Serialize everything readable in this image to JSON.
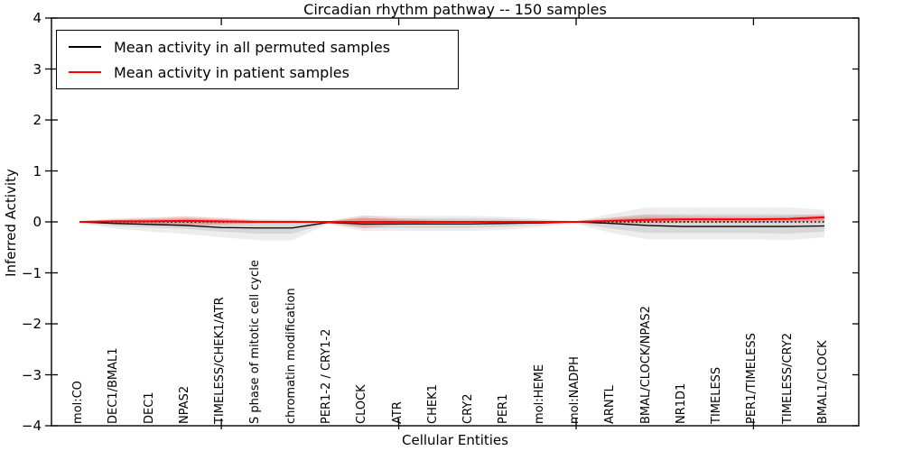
{
  "chart_data": {
    "type": "line",
    "title": "Circadian rhythm pathway -- 150 samples",
    "xlabel": "Cellular Entities",
    "ylabel": "Inferred Activity",
    "ylim": [
      -4,
      4
    ],
    "grid": false,
    "legend_position": "upper left",
    "categories": [
      "mol:CO",
      "DEC1/BMAL1",
      "DEC1",
      "NPAS2",
      "TIMELESS/CHEK1/ATR",
      "S phase of mitotic cell cycle",
      "chromatin modification",
      "PER1-2 / CRY1-2",
      "CLOCK",
      "ATR",
      "CHEK1",
      "CRY2",
      "PER1",
      "mol:HEME",
      "mol:NADPH",
      "ARNTL",
      "BMAL/CLOCK/NPAS2",
      "NR1D1",
      "TIMELESS",
      "PER1/TIMELESS",
      "TIMELESS/CRY2",
      "BMAL1/CLOCK"
    ],
    "xtick_indices": [
      4,
      9,
      14,
      19
    ],
    "yticks": {
      "values": [
        4,
        3,
        2,
        1,
        0,
        -1,
        -2,
        -3,
        -4
      ],
      "labels": [
        "4",
        "3",
        "2",
        "1",
        "0",
        "−1",
        "−2",
        "−3",
        "−4"
      ]
    },
    "zero_line": {
      "y": 0,
      "style": "dotted",
      "color": "#000000"
    },
    "series": [
      {
        "name": "Mean activity in all permuted samples",
        "color": "#000000",
        "values": [
          0.0,
          -0.03,
          -0.05,
          -0.07,
          -0.11,
          -0.12,
          -0.12,
          -0.01,
          -0.04,
          -0.04,
          -0.04,
          -0.04,
          -0.03,
          -0.02,
          0.0,
          -0.03,
          -0.07,
          -0.09,
          -0.09,
          -0.09,
          -0.09,
          -0.08
        ],
        "band_outer": {
          "upper": [
            0.02,
            0.07,
            0.09,
            0.11,
            0.07,
            0.05,
            0.05,
            0.02,
            0.12,
            0.12,
            0.12,
            0.12,
            0.1,
            0.06,
            0.02,
            0.16,
            0.28,
            0.28,
            0.28,
            0.28,
            0.28,
            0.24
          ],
          "lower": [
            -0.03,
            -0.13,
            -0.19,
            -0.24,
            -0.3,
            -0.36,
            -0.36,
            -0.05,
            -0.18,
            -0.18,
            -0.18,
            -0.18,
            -0.16,
            -0.1,
            -0.04,
            -0.22,
            -0.34,
            -0.34,
            -0.34,
            -0.34,
            -0.36,
            -0.3
          ]
        },
        "band_outer_fill": "rgba(0,0,0,0.07)",
        "band_inner": {
          "upper": [
            0.01,
            0.04,
            0.05,
            0.06,
            0.03,
            0.02,
            0.02,
            0.01,
            0.07,
            0.07,
            0.07,
            0.07,
            0.06,
            0.03,
            0.01,
            0.08,
            0.15,
            0.15,
            0.15,
            0.15,
            0.15,
            0.13
          ],
          "lower": [
            -0.02,
            -0.08,
            -0.11,
            -0.14,
            -0.19,
            -0.23,
            -0.23,
            -0.03,
            -0.12,
            -0.12,
            -0.12,
            -0.12,
            -0.1,
            -0.06,
            -0.02,
            -0.13,
            -0.22,
            -0.22,
            -0.22,
            -0.22,
            -0.23,
            -0.19
          ]
        },
        "band_inner_fill": "rgba(0,0,0,0.09)"
      },
      {
        "name": "Mean activity in patient samples",
        "color": "#ff0000",
        "values": [
          0.0,
          0.01,
          0.01,
          0.02,
          0.01,
          0.0,
          0.0,
          0.0,
          0.0,
          0.0,
          0.0,
          0.0,
          0.0,
          0.0,
          0.0,
          0.02,
          0.04,
          0.05,
          0.05,
          0.05,
          0.06,
          0.09
        ],
        "band_outer": {
          "upper": [
            0.01,
            0.05,
            0.08,
            0.11,
            0.08,
            0.04,
            0.03,
            0.01,
            0.13,
            0.07,
            0.04,
            0.03,
            0.03,
            0.02,
            0.01,
            0.09,
            0.14,
            0.12,
            0.11,
            0.11,
            0.12,
            0.16
          ],
          "lower": [
            -0.01,
            -0.04,
            -0.06,
            -0.08,
            -0.06,
            -0.03,
            -0.02,
            -0.01,
            -0.13,
            -0.06,
            -0.03,
            -0.02,
            -0.02,
            -0.01,
            -0.01,
            -0.03,
            -0.04,
            -0.02,
            -0.02,
            -0.02,
            -0.01,
            0.01
          ]
        },
        "band_outer_fill": "rgba(255,0,0,0.12)",
        "band_inner": {
          "upper": [
            0.005,
            0.03,
            0.05,
            0.07,
            0.05,
            0.02,
            0.015,
            0.005,
            0.08,
            0.04,
            0.02,
            0.015,
            0.015,
            0.01,
            0.005,
            0.05,
            0.09,
            0.08,
            0.08,
            0.08,
            0.08,
            0.12
          ],
          "lower": [
            -0.005,
            -0.02,
            -0.04,
            -0.05,
            -0.04,
            -0.02,
            -0.01,
            -0.005,
            -0.08,
            -0.04,
            -0.02,
            -0.01,
            -0.01,
            -0.005,
            -0.005,
            -0.01,
            -0.01,
            0.0,
            0.0,
            0.0,
            0.0,
            0.03
          ]
        },
        "band_inner_fill": "rgba(255,0,0,0.20)"
      }
    ]
  }
}
